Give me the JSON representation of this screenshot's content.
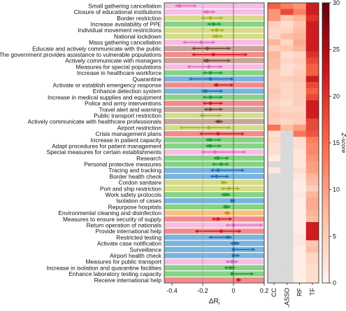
{
  "chart_data": [
    {
      "type": "scatter",
      "subtype": "interval-forest-plot",
      "xlabel": "ΔR",
      "xlabel_subscript": "i",
      "xlim": [
        -0.45,
        0.2
      ],
      "xticks": [
        -0.4,
        -0.2,
        0,
        0.2
      ],
      "xtick_labels": [
        "-0.4",
        "-0.2",
        "0",
        "0.2"
      ],
      "grid": false,
      "row_color_palette": {
        "pink": "#f7bde4",
        "green": "#86d386",
        "olive": "#d5dc8a",
        "red": "#f48b8b",
        "blue": "#7bb4dd",
        "brown": "#c9a49a",
        "orange": "#f7c27e",
        "ink_pink": "#e06cc6",
        "ink_green": "#1f9e3a",
        "ink_olive": "#a6b322",
        "ink_red": "#d6181e",
        "ink_blue": "#1f6fb0",
        "ink_brown": "#7b4a3a",
        "ink_orange": "#f07f12"
      },
      "rows": [
        {
          "label": "Small gathering cancellation",
          "color": "pink",
          "mean": -0.35,
          "low": -0.38,
          "high": -0.24
        },
        {
          "label": "Closure of educational institutions",
          "color": "pink",
          "mean": -0.17,
          "low": -0.2,
          "high": -0.12
        },
        {
          "label": "Border restriction",
          "color": "olive",
          "mean": -0.15,
          "low": -0.21,
          "high": -0.07
        },
        {
          "label": "Increase availability of PPE",
          "color": "green",
          "mean": -0.13,
          "low": -0.17,
          "high": -0.08
        },
        {
          "label": "Individual movement restrictions",
          "color": "olive",
          "mean": -0.11,
          "low": -0.15,
          "high": -0.06
        },
        {
          "label": "National lockdown",
          "color": "olive",
          "mean": -0.11,
          "low": -0.14,
          "high": -0.07
        },
        {
          "label": "Mass gathering cancellation",
          "color": "pink",
          "mean": -0.21,
          "low": -0.33,
          "high": -0.12
        },
        {
          "label": "Educate and actively communicate with the public",
          "color": "brown",
          "mean": -0.17,
          "low": -0.27,
          "high": -0.02
        },
        {
          "label": "The government provides assistance to vulnerable populations",
          "color": "red",
          "mean": -0.13,
          "low": -0.27,
          "high": 0.09
        },
        {
          "label": "Actively communicate with managers",
          "color": "brown",
          "mean": -0.17,
          "low": -0.2,
          "high": -0.02
        },
        {
          "label": "Measures for special populations",
          "color": "pink",
          "mean": -0.16,
          "low": -0.3,
          "high": -0.07
        },
        {
          "label": "Increase in healthcare workforce",
          "color": "green",
          "mean": -0.15,
          "low": -0.2,
          "high": -0.07
        },
        {
          "label": "Quarantine",
          "color": "blue",
          "mean": -0.15,
          "low": -0.29,
          "high": 0.0
        },
        {
          "label": "Activate or establish emergency response",
          "color": "red",
          "mean": -0.11,
          "low": -0.13,
          "high": 0.0
        },
        {
          "label": "Enhance detection system",
          "color": "blue",
          "mean": -0.18,
          "low": -0.21,
          "high": -0.07
        },
        {
          "label": "Increase in medical supplies and equipment",
          "color": "green",
          "mean": -0.15,
          "low": -0.2,
          "high": -0.07
        },
        {
          "label": "Police and army interventions",
          "color": "red",
          "mean": -0.15,
          "low": -0.2,
          "high": -0.07
        },
        {
          "label": "Travel alert and warning",
          "color": "brown",
          "mean": -0.15,
          "low": -0.19,
          "high": -0.07
        },
        {
          "label": "Public transport restriction",
          "color": "olive",
          "mean": -0.2,
          "low": -0.22,
          "high": -0.08
        },
        {
          "label": "Actively communicate with healthcare professionals",
          "color": "brown",
          "mean": -0.1,
          "low": -0.12,
          "high": -0.07
        },
        {
          "label": "Airport restriction",
          "color": "olive",
          "mean": -0.16,
          "low": -0.35,
          "high": -0.02
        },
        {
          "label": "Crisis management plans",
          "color": "red",
          "mean": -0.1,
          "low": -0.22,
          "high": 0.07
        },
        {
          "label": "Increase in patient capacity",
          "color": "green",
          "mean": -0.15,
          "low": -0.18,
          "high": -0.08
        },
        {
          "label": "Adapt procedures for patient management",
          "color": "green",
          "mean": -0.15,
          "low": -0.18,
          "high": -0.08
        },
        {
          "label": "Special measures for certain establishments",
          "color": "pink",
          "mean": -0.12,
          "low": -0.21,
          "high": 0.08
        },
        {
          "label": "Research",
          "color": "green",
          "mean": -0.1,
          "low": -0.13,
          "high": -0.03
        },
        {
          "label": "Personal protective measures",
          "color": "green",
          "mean": -0.08,
          "low": -0.14,
          "high": -0.03
        },
        {
          "label": "Tracing and tracking",
          "color": "blue",
          "mean": -0.1,
          "low": -0.15,
          "high": 0.07
        },
        {
          "label": "Border health check",
          "color": "blue",
          "mean": -0.11,
          "low": -0.15,
          "high": -0.03
        },
        {
          "label": "Cordon sanitaire",
          "color": "olive",
          "mean": -0.07,
          "low": -0.08,
          "high": -0.04
        },
        {
          "label": "Port and ship restriction",
          "color": "olive",
          "mean": -0.03,
          "low": -0.08,
          "high": 0.04
        },
        {
          "label": "Work safety protocols",
          "color": "green",
          "mean": -0.05,
          "low": -0.08,
          "high": -0.02
        },
        {
          "label": "Isolation of cases",
          "color": "blue",
          "mean": -0.01,
          "low": -0.01,
          "high": 0.0
        },
        {
          "label": "Repurpose hospitals",
          "color": "green",
          "mean": -0.05,
          "low": -0.07,
          "high": -0.02
        },
        {
          "label": "Environmental cleaning and disinfection",
          "color": "orange",
          "mean": -0.04,
          "low": -0.06,
          "high": -0.02
        },
        {
          "label": "Measures to ensure security of supply",
          "color": "red",
          "mean": -0.1,
          "low": -0.14,
          "high": -0.01
        },
        {
          "label": "Return operation of nationals",
          "color": "pink",
          "mean": 0.0,
          "low": -0.05,
          "high": 0.19
        },
        {
          "label": "Provide international help",
          "color": "red",
          "mean": -0.08,
          "low": -0.25,
          "high": 0.05
        },
        {
          "label": "Restricted testing",
          "color": "blue",
          "mean": -0.04,
          "low": -0.16,
          "high": -0.01
        },
        {
          "label": "Activate case notification",
          "color": "blue",
          "mean": 0.01,
          "low": -0.02,
          "high": 0.04
        },
        {
          "label": "Surveillance",
          "color": "blue",
          "mean": 0.0,
          "low": -0.01,
          "high": 0.14
        },
        {
          "label": "Airport health check",
          "color": "blue",
          "mean": 0.0,
          "low": -0.01,
          "high": 0.04
        },
        {
          "label": "Measures for public transport",
          "color": "pink",
          "mean": -0.01,
          "low": -0.05,
          "high": 0.03
        },
        {
          "label": "Increase in isolation and quarantine facilities",
          "color": "green",
          "mean": -0.02,
          "low": -0.06,
          "high": 0.01
        },
        {
          "label": "Enhance laboratory testing capacity",
          "color": "green",
          "mean": -0.01,
          "low": -0.02,
          "high": 0.13
        },
        {
          "label": "Receive international help",
          "color": "red",
          "mean": 0.03,
          "low": 0.02,
          "high": 0.05
        }
      ]
    },
    {
      "type": "heatmap",
      "columns": [
        "CC",
        "LASSO",
        "RF",
        "TF"
      ],
      "missing_color": "#d9d9d9",
      "colorbar": {
        "label": "Z-score",
        "range": [
          0,
          30
        ],
        "ticks": [
          0,
          5,
          10,
          15,
          20,
          25,
          30
        ],
        "colormap": [
          "#fff5f0",
          "#fcbba1",
          "#fb6a4a",
          "#cb181d",
          "#67000d"
        ]
      },
      "values": [
        [
          16,
          13,
          11,
          22
        ],
        [
          11,
          18,
          13,
          22
        ],
        [
          11,
          6,
          8,
          20
        ],
        [
          5,
          3,
          6,
          22
        ],
        [
          4,
          4,
          7,
          22
        ],
        [
          4,
          7,
          8,
          22
        ],
        [
          8,
          4,
          9,
          22
        ],
        [
          5,
          6,
          8,
          22
        ],
        [
          8,
          3,
          4,
          20
        ],
        [
          7,
          4,
          5,
          18
        ],
        [
          7,
          3,
          4,
          16
        ],
        [
          5,
          3,
          5,
          16
        ],
        [
          5,
          5,
          6,
          22
        ],
        [
          5,
          4,
          5,
          18
        ],
        [
          6,
          4,
          5,
          16
        ],
        [
          5,
          4,
          5,
          18
        ],
        [
          4,
          3,
          5,
          22
        ],
        [
          5,
          4,
          4,
          22
        ],
        [
          6,
          5,
          5,
          22
        ],
        [
          5,
          4,
          5,
          18
        ],
        [
          14,
          7,
          10,
          18
        ],
        [
          3,
          null,
          14,
          17
        ],
        [
          4,
          null,
          3,
          13
        ],
        [
          3,
          null,
          3,
          12
        ],
        [
          3,
          null,
          2,
          12
        ],
        [
          1,
          null,
          2,
          11
        ],
        [
          null,
          null,
          2,
          10
        ],
        [
          2,
          null,
          3,
          10
        ],
        [
          null,
          null,
          2,
          8
        ],
        [
          null,
          null,
          1,
          7
        ],
        [
          null,
          null,
          1,
          5
        ],
        [
          null,
          null,
          2,
          8
        ],
        [
          null,
          null,
          1,
          9
        ],
        [
          null,
          null,
          1,
          9
        ],
        [
          null,
          null,
          1,
          8
        ],
        [
          null,
          null,
          1,
          7
        ],
        [
          null,
          null,
          1,
          22
        ],
        [
          null,
          null,
          1,
          22
        ],
        [
          null,
          null,
          2,
          22
        ],
        [
          null,
          null,
          2,
          6
        ],
        [
          null,
          null,
          1,
          7
        ],
        [
          null,
          null,
          1,
          4
        ],
        [
          null,
          null,
          1,
          4
        ],
        [
          null,
          null,
          1,
          3
        ],
        [
          null,
          null,
          1,
          3
        ],
        [
          null,
          null,
          1,
          3
        ]
      ]
    }
  ]
}
